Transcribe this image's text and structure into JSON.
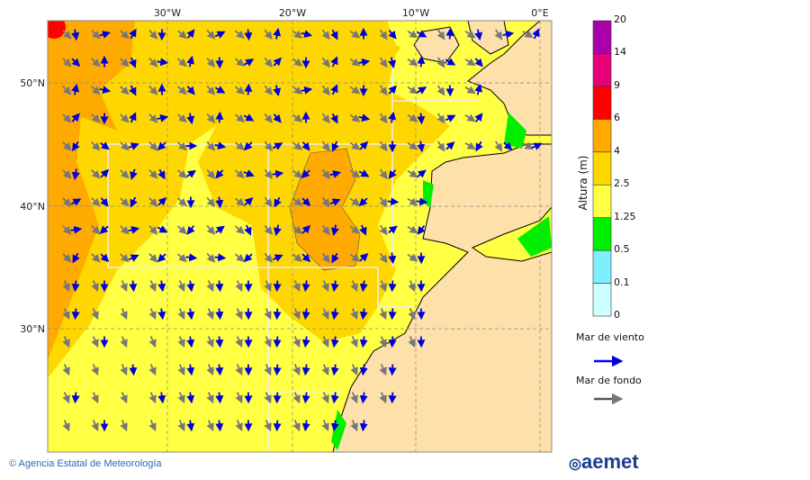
{
  "map": {
    "lon_labels": [
      "30°W",
      "20°W",
      "10°W",
      "0°E"
    ],
    "lat_labels": [
      "50°N",
      "40°N",
      "30°N"
    ],
    "lon_range": [
      -40,
      1
    ],
    "lat_range": [
      20,
      55
    ]
  },
  "legend": {
    "title": "Altura (m)",
    "levels": [
      "0",
      "0.1",
      "0.5",
      "1.25",
      "2.5",
      "4",
      "6",
      "9",
      "14",
      "20"
    ],
    "colors": [
      "#ccffff",
      "#80eeff",
      "#00ee00",
      "#ffff44",
      "#ffd700",
      "#ffaa00",
      "#ff0000",
      "#e6007a",
      "#aa00aa"
    ],
    "wind_sea_label": "Mar de viento",
    "wind_sea_color": "#0000ff",
    "swell_label": "Mar de fondo",
    "swell_color": "#555555"
  },
  "footer": {
    "credit": "© Agencia Estatal de Meteorología",
    "logo_text": "aemet"
  }
}
